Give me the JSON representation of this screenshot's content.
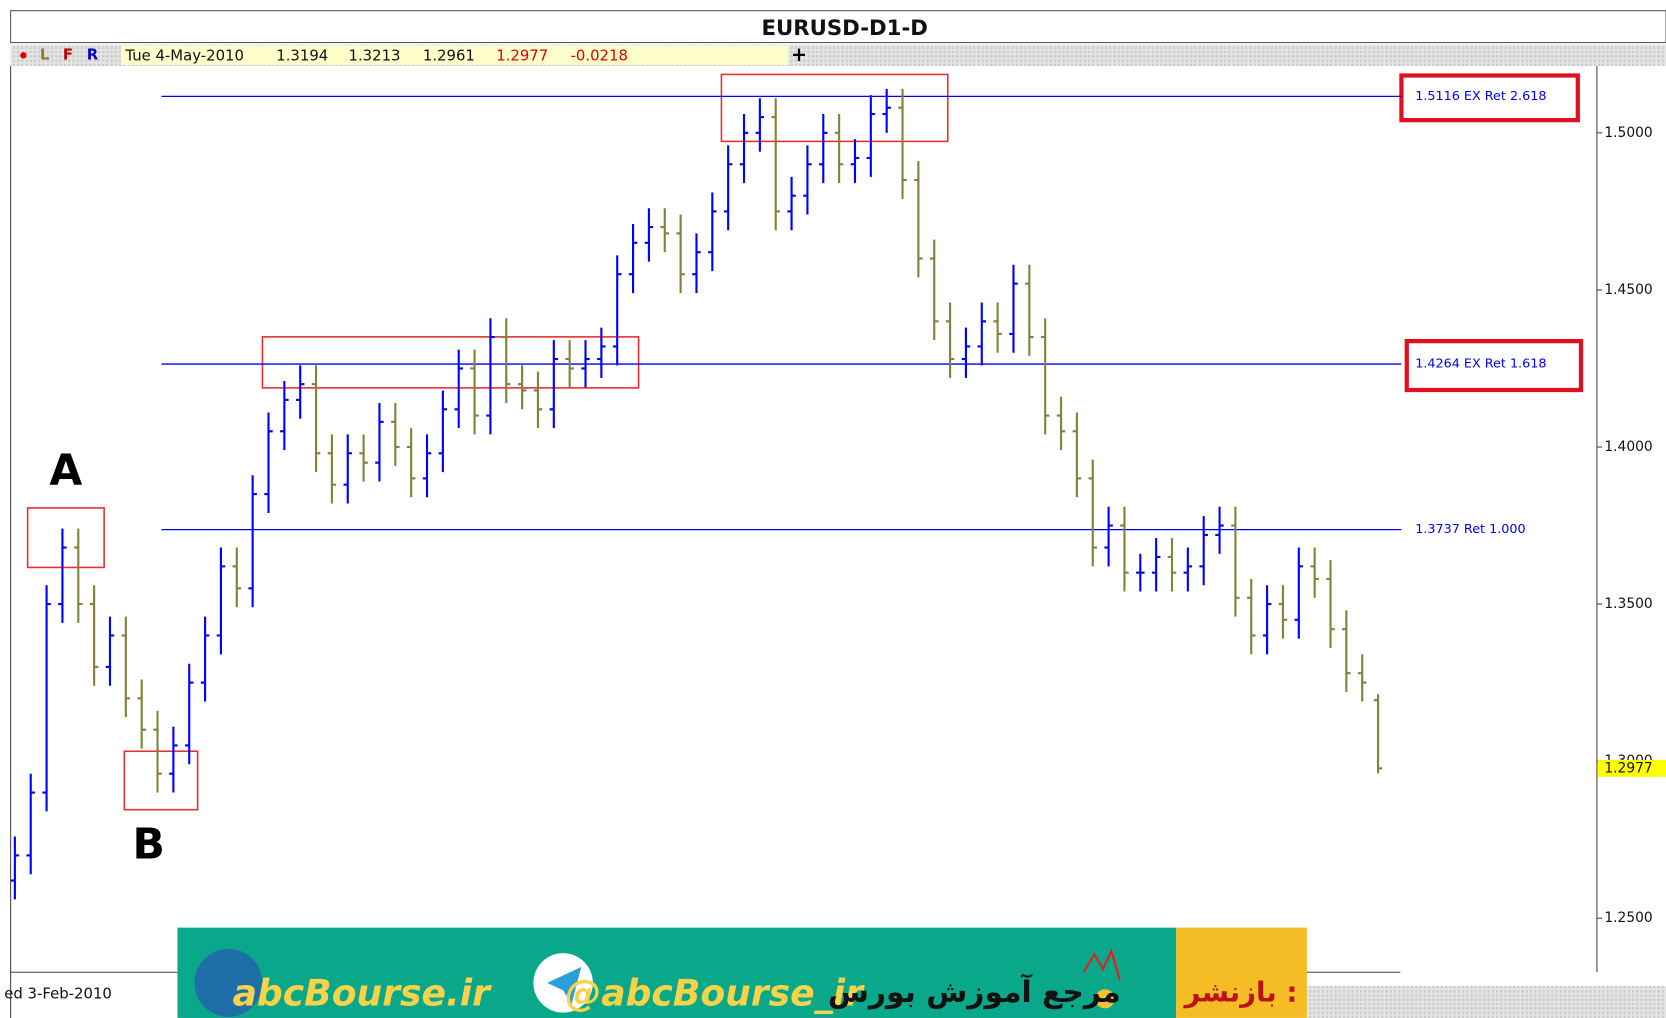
{
  "chart_data": {
    "type": "ohlc",
    "title": "EURUSD-D1-D",
    "toolbar": [
      "L",
      "F",
      "R"
    ],
    "cursor_date": "Tue 4-May-2010",
    "change": -0.0218,
    "x_label": "ed 3-Feb-2010",
    "up_color": "#0000ff",
    "down_color": "#85803a",
    "ylim": [
      1.2328,
      1.5213
    ],
    "yticks": [
      {
        "value": 1.25,
        "label": "1.2500"
      },
      {
        "value": 1.3,
        "label": "1.3000"
      },
      {
        "value": 1.35,
        "label": "1.3500"
      },
      {
        "value": 1.4,
        "label": "1.4000"
      },
      {
        "value": 1.45,
        "label": "1.4500"
      },
      {
        "value": 1.5,
        "label": "1.5000"
      }
    ],
    "levels": [
      {
        "value": 1.5116,
        "label": "1.5116 EX Ret 2.618"
      },
      {
        "value": 1.4264,
        "label": "1.4264 EX Ret 1.618"
      },
      {
        "value": 1.3737,
        "label": "1.3737 Ret 1.000"
      }
    ],
    "level_color": "#0000ee",
    "annotations": [
      "A",
      "B"
    ],
    "ohlc": [
      [
        1.262,
        1.276,
        1.256,
        1.27
      ],
      [
        1.27,
        1.296,
        1.264,
        1.29
      ],
      [
        1.29,
        1.356,
        1.284,
        1.35
      ],
      [
        1.35,
        1.374,
        1.344,
        1.368
      ],
      [
        1.368,
        1.374,
        1.344,
        1.35
      ],
      [
        1.35,
        1.356,
        1.324,
        1.33
      ],
      [
        1.33,
        1.346,
        1.324,
        1.34
      ],
      [
        1.34,
        1.346,
        1.314,
        1.32
      ],
      [
        1.32,
        1.326,
        1.304,
        1.31
      ],
      [
        1.31,
        1.316,
        1.29,
        1.296
      ],
      [
        1.296,
        1.311,
        1.29,
        1.305
      ],
      [
        1.305,
        1.331,
        1.299,
        1.325
      ],
      [
        1.325,
        1.346,
        1.319,
        1.34
      ],
      [
        1.34,
        1.368,
        1.334,
        1.362
      ],
      [
        1.362,
        1.368,
        1.349,
        1.355
      ],
      [
        1.355,
        1.391,
        1.349,
        1.385
      ],
      [
        1.385,
        1.411,
        1.379,
        1.405
      ],
      [
        1.405,
        1.421,
        1.399,
        1.415
      ],
      [
        1.415,
        1.426,
        1.409,
        1.42
      ],
      [
        1.42,
        1.426,
        1.392,
        1.398
      ],
      [
        1.398,
        1.404,
        1.382,
        1.388
      ],
      [
        1.388,
        1.404,
        1.382,
        1.398
      ],
      [
        1.398,
        1.404,
        1.389,
        1.395
      ],
      [
        1.395,
        1.414,
        1.389,
        1.408
      ],
      [
        1.408,
        1.414,
        1.394,
        1.4
      ],
      [
        1.4,
        1.406,
        1.384,
        1.39
      ],
      [
        1.39,
        1.404,
        1.384,
        1.398
      ],
      [
        1.398,
        1.418,
        1.392,
        1.412
      ],
      [
        1.412,
        1.431,
        1.406,
        1.425
      ],
      [
        1.425,
        1.431,
        1.404,
        1.41
      ],
      [
        1.41,
        1.441,
        1.404,
        1.435
      ],
      [
        1.435,
        1.441,
        1.414,
        1.42
      ],
      [
        1.42,
        1.426,
        1.412,
        1.418
      ],
      [
        1.418,
        1.424,
        1.406,
        1.412
      ],
      [
        1.412,
        1.434,
        1.406,
        1.428
      ],
      [
        1.428,
        1.434,
        1.419,
        1.425
      ],
      [
        1.425,
        1.434,
        1.419,
        1.428
      ],
      [
        1.428,
        1.438,
        1.422,
        1.432
      ],
      [
        1.432,
        1.461,
        1.426,
        1.455
      ],
      [
        1.455,
        1.471,
        1.449,
        1.465
      ],
      [
        1.465,
        1.476,
        1.459,
        1.47
      ],
      [
        1.47,
        1.476,
        1.462,
        1.468
      ],
      [
        1.468,
        1.474,
        1.449,
        1.455
      ],
      [
        1.455,
        1.468,
        1.449,
        1.462
      ],
      [
        1.462,
        1.481,
        1.456,
        1.475
      ],
      [
        1.475,
        1.496,
        1.469,
        1.49
      ],
      [
        1.49,
        1.506,
        1.484,
        1.5
      ],
      [
        1.5,
        1.511,
        1.494,
        1.505
      ],
      [
        1.505,
        1.511,
        1.469,
        1.475
      ],
      [
        1.475,
        1.486,
        1.469,
        1.48
      ],
      [
        1.48,
        1.496,
        1.474,
        1.49
      ],
      [
        1.49,
        1.506,
        1.484,
        1.5
      ],
      [
        1.5,
        1.506,
        1.484,
        1.49
      ],
      [
        1.49,
        1.498,
        1.484,
        1.492
      ],
      [
        1.492,
        1.512,
        1.486,
        1.506
      ],
      [
        1.506,
        1.514,
        1.5,
        1.508
      ],
      [
        1.508,
        1.514,
        1.479,
        1.485
      ],
      [
        1.485,
        1.491,
        1.454,
        1.46
      ],
      [
        1.46,
        1.466,
        1.434,
        1.44
      ],
      [
        1.44,
        1.446,
        1.422,
        1.428
      ],
      [
        1.428,
        1.438,
        1.422,
        1.432
      ],
      [
        1.432,
        1.446,
        1.426,
        1.44
      ],
      [
        1.44,
        1.446,
        1.43,
        1.436
      ],
      [
        1.436,
        1.458,
        1.43,
        1.452
      ],
      [
        1.452,
        1.458,
        1.429,
        1.435
      ],
      [
        1.435,
        1.441,
        1.404,
        1.41
      ],
      [
        1.41,
        1.416,
        1.399,
        1.405
      ],
      [
        1.405,
        1.411,
        1.384,
        1.39
      ],
      [
        1.39,
        1.396,
        1.362,
        1.368
      ],
      [
        1.368,
        1.381,
        1.362,
        1.375
      ],
      [
        1.375,
        1.381,
        1.354,
        1.36
      ],
      [
        1.36,
        1.366,
        1.354,
        1.36
      ],
      [
        1.36,
        1.371,
        1.354,
        1.365
      ],
      [
        1.365,
        1.371,
        1.354,
        1.36
      ],
      [
        1.36,
        1.368,
        1.354,
        1.362
      ],
      [
        1.362,
        1.378,
        1.356,
        1.372
      ],
      [
        1.372,
        1.381,
        1.366,
        1.375
      ],
      [
        1.375,
        1.381,
        1.346,
        1.352
      ],
      [
        1.352,
        1.358,
        1.334,
        1.34
      ],
      [
        1.34,
        1.356,
        1.334,
        1.35
      ],
      [
        1.35,
        1.356,
        1.339,
        1.345
      ],
      [
        1.345,
        1.368,
        1.339,
        1.362
      ],
      [
        1.362,
        1.368,
        1.352,
        1.358
      ],
      [
        1.358,
        1.364,
        1.336,
        1.342
      ],
      [
        1.342,
        1.348,
        1.322,
        1.328
      ],
      [
        1.328,
        1.334,
        1.319,
        1.325
      ],
      [
        1.3194,
        1.3213,
        1.2961,
        1.2977
      ]
    ]
  },
  "banner": {
    "site": "abcBourse.ir",
    "telegram": "@abcBourse_ir",
    "slogan": "مرجع آموزش بورس",
    "republish": "بازنشر :"
  }
}
